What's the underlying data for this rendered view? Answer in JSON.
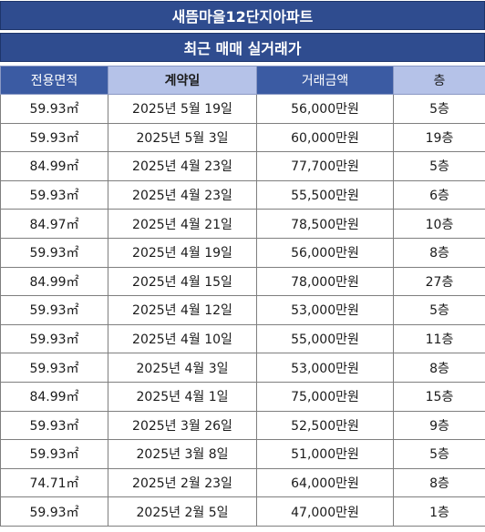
{
  "title": "새뜸마을12단지아파트",
  "subtitle": "최근 매매 실거래가",
  "columns": [
    "전용면적",
    "계약일",
    "거래금액",
    "층"
  ],
  "rows": [
    {
      "area": "59.93㎡",
      "date": "2025년 5월 19일",
      "price": "56,000만원",
      "floor": "5층"
    },
    {
      "area": "59.93㎡",
      "date": "2025년 5월 3일",
      "price": "60,000만원",
      "floor": "19층"
    },
    {
      "area": "84.99㎡",
      "date": "2025년 4월 23일",
      "price": "77,700만원",
      "floor": "5층"
    },
    {
      "area": "59.93㎡",
      "date": "2025년 4월 23일",
      "price": "55,500만원",
      "floor": "6층"
    },
    {
      "area": "84.97㎡",
      "date": "2025년 4월 21일",
      "price": "78,500만원",
      "floor": "10층"
    },
    {
      "area": "59.93㎡",
      "date": "2025년 4월 19일",
      "price": "56,000만원",
      "floor": "8층"
    },
    {
      "area": "84.99㎡",
      "date": "2025년 4월 15일",
      "price": "78,000만원",
      "floor": "27층"
    },
    {
      "area": "59.93㎡",
      "date": "2025년 4월 12일",
      "price": "53,000만원",
      "floor": "5층"
    },
    {
      "area": "59.93㎡",
      "date": "2025년 4월 10일",
      "price": "55,000만원",
      "floor": "11층"
    },
    {
      "area": "59.93㎡",
      "date": "2025년 4월 3일",
      "price": "53,000만원",
      "floor": "8층"
    },
    {
      "area": "84.99㎡",
      "date": "2025년 4월 1일",
      "price": "75,000만원",
      "floor": "15층"
    },
    {
      "area": "59.93㎡",
      "date": "2025년 3월 26일",
      "price": "52,500만원",
      "floor": "9층"
    },
    {
      "area": "59.93㎡",
      "date": "2025년 3월 8일",
      "price": "51,000만원",
      "floor": "5층"
    },
    {
      "area": "74.71㎡",
      "date": "2025년 2월 23일",
      "price": "64,000만원",
      "floor": "8층"
    },
    {
      "area": "59.93㎡",
      "date": "2025년 2월 5일",
      "price": "47,000만원",
      "floor": "1층"
    }
  ]
}
